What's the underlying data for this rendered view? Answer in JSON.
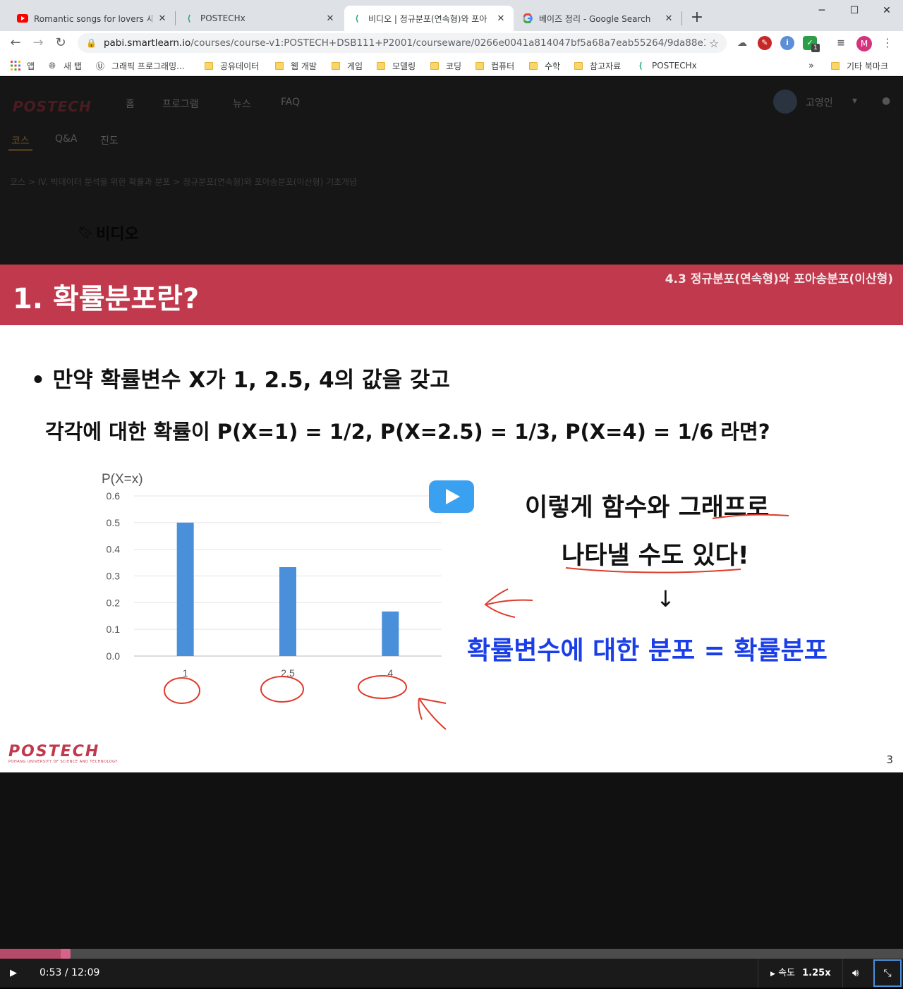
{
  "browser": {
    "tabs": [
      {
        "title": "Romantic songs for lovers 사랑하",
        "icon": "youtube-icon"
      },
      {
        "title": "POSTECHx",
        "icon": "postechx-icon"
      },
      {
        "title": "비디오 | 정규분포(연속형)와 포아",
        "icon": "postechx-icon"
      },
      {
        "title": "베이즈 정리 - Google Search",
        "icon": "google-icon"
      }
    ],
    "new_tab": "+",
    "url_host": "pabi.smartlearn.io",
    "url_path": "/courses/course-v1:POSTECH+DSB111+P2001/courseware/0266e0041a814047bf5a68a7eab55264/9da88e1edb1c4dc...",
    "profile_initial": "M",
    "extension_badge": "1",
    "bookmarks": [
      {
        "label": "앱",
        "type": "apps"
      },
      {
        "label": "새 탭",
        "type": "globe"
      },
      {
        "label": "그래픽 프로그래밍...",
        "type": "site"
      },
      {
        "label": "공유데이터",
        "type": "folder"
      },
      {
        "label": "웹 개발",
        "type": "folder"
      },
      {
        "label": "게임",
        "type": "folder"
      },
      {
        "label": "모델링",
        "type": "folder"
      },
      {
        "label": "코딩",
        "type": "folder"
      },
      {
        "label": "컴퓨터",
        "type": "folder"
      },
      {
        "label": "수학",
        "type": "folder"
      },
      {
        "label": "참고자료",
        "type": "folder"
      },
      {
        "label": "POSTECHx",
        "type": "postechx"
      }
    ],
    "bookmarks_overflow": "»",
    "other_bookmarks": "기타 북마크"
  },
  "site": {
    "logo": "POSTECH",
    "nav": [
      "홈",
      "프로그램",
      "뉴스",
      "FAQ"
    ],
    "username": "고영인",
    "course_tabs": [
      "코스",
      "Q&A",
      "진도"
    ],
    "breadcrumb": "코스 > IV. 빅데이터 분석을 위한 확률과 분포 > 정규분포(연속형)와 포아송분포(이산형) 기초개념",
    "video_heading": "비디오"
  },
  "slide": {
    "title": "1. 확률분포란?",
    "section": "4.3 정규분포(연속형)와 포아송분포(이산형)",
    "bullet_dot": "•",
    "bullet_line1": "만약 확률변수 X가 1, 2.5, 4의 값을 갖고",
    "bullet_line2": "각각에 대한 확률이 P(X=1) = 1/2, P(X=2.5) = 1/3, P(X=4) = 1/6 라면?",
    "note_line1": "이렇게 함수와 그래프로",
    "note_line2": "나타낼 수도 있다!",
    "arrow_down": "↓",
    "conclusion": "확률변수에 대한 분포 = 확률분포",
    "page_number": "3",
    "logo_text": "POSTECH",
    "logo_subtext": "POHANG UNIVERSITY OF SCIENCE AND TECHNOLOGY"
  },
  "chart_data": {
    "type": "bar",
    "ylabel": "P(X=x)",
    "categories": [
      "1",
      "2.5",
      "4"
    ],
    "values": [
      0.5,
      0.333,
      0.167
    ],
    "ylim": [
      0,
      0.6
    ],
    "yticks": [
      "0.0",
      "0.1",
      "0.2",
      "0.3",
      "0.4",
      "0.5",
      "0.6"
    ],
    "grid": true,
    "bar_color": "#4a8fd9"
  },
  "player": {
    "time": "0:53 / 12:09",
    "speed_label": "속도",
    "speed_value": "1.25x",
    "progress_fraction": 0.073,
    "accent": "#b54b6a"
  }
}
